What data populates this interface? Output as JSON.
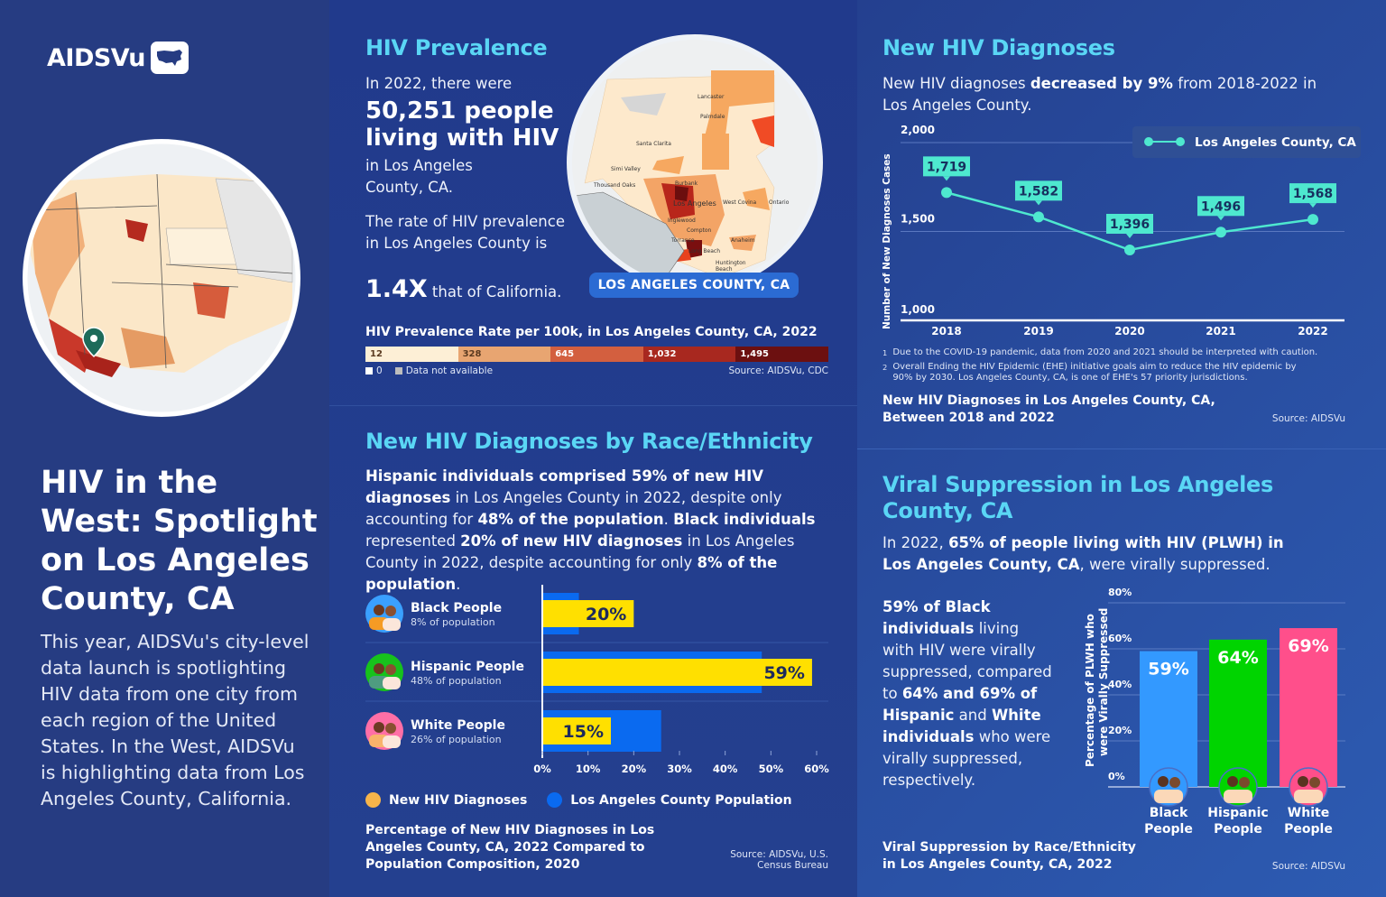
{
  "brand": {
    "logo_text": "AIDSVu"
  },
  "left": {
    "title": "HIV in the West: Spotlight on Los Angeles County, CA",
    "body": "This year, AIDSVu's city-level data launch is spotlighting HIV data from one city from each region of the United States. In the West, AIDSVu is highlighting data from Los Angeles County, California."
  },
  "prevalence": {
    "title": "HIV Prevalence",
    "intro": "In 2022, there were",
    "headline": "50,251 people living with HIV",
    "location": "in Los Angeles County, CA.",
    "rate_text": "The rate of HIV prevalence in Los Angeles County is",
    "rate_value": "1.4X",
    "rate_suffix": " that of California.",
    "map_badge": "LOS ANGELES COUNTY, CA",
    "map_labels": [
      "Lancaster",
      "Palmdale",
      "Santa Clarita",
      "Simi Valley",
      "Thousand Oaks",
      "Burbank",
      "Los Angeles",
      "West Covina",
      "Ontario",
      "Inglewood",
      "Compton",
      "Torrance",
      "Anaheim",
      "Long Beach",
      "Huntington Beach"
    ],
    "legend_title": "HIV Prevalence Rate per 100k, in Los Angeles County, CA, 2022",
    "legend_bins": [
      {
        "label": "12",
        "color": "#fdefd6"
      },
      {
        "label": "328",
        "color": "#e8a571"
      },
      {
        "label": "645",
        "color": "#d35f3f"
      },
      {
        "label": "1,032",
        "color": "#a8281f"
      },
      {
        "label": "1,495",
        "color": "#6c1010"
      }
    ],
    "legend_zero": "0",
    "legend_na": "Data not available",
    "source": "Source: AIDSVu, CDC"
  },
  "race": {
    "title": "New HIV Diagnoses by Race/Ethnicity",
    "body": [
      {
        "t": "Hispanic individuals comprised 59% of new HIV diagnoses",
        "b": true
      },
      {
        "t": " in Los Angeles County in 2022, despite only accounting for ",
        "b": false
      },
      {
        "t": "48% of the population",
        "b": true
      },
      {
        "t": ". ",
        "b": false
      },
      {
        "t": "Black individuals",
        "b": true
      },
      {
        "t": " represented ",
        "b": false
      },
      {
        "t": "20% of new HIV diagnoses",
        "b": true
      },
      {
        "t": " in Los Angeles County in 2022, despite accounting for only ",
        "b": false
      },
      {
        "t": "8% of the population",
        "b": true
      },
      {
        "t": ".",
        "b": false
      }
    ],
    "footer_title": "Percentage of New HIV Diagnoses in Los Angeles County, CA, 2022 Compared to Population Composition, 2020",
    "source": "Source: AIDSVu, U.S. Census Bureau"
  },
  "diagnoses": {
    "title": "New HIV Diagnoses",
    "body": [
      {
        "t": "New HIV diagnoses ",
        "b": false
      },
      {
        "t": "decreased by 9%",
        "b": true
      },
      {
        "t": " from 2018-2022 in Los Angeles County.",
        "b": false
      }
    ],
    "footnote_1_mark": "1",
    "footnote_1": "Due to the COVID-19 pandemic, data from 2020 and 2021 should be interpreted with caution.",
    "footnote_2_mark": "2",
    "footnote_2": "Overall Ending the HIV Epidemic (EHE) initiative goals aim to reduce the HIV epidemic by 90% by 2030. Los Angeles County, CA, is one of EHE's 57 priority jurisdictions.",
    "footer_title": "New HIV Diagnoses in Los Angeles County, CA, Between 2018 and 2022",
    "source": "Source: AIDSVu"
  },
  "viral": {
    "title": "Viral Suppression in Los Angeles County, CA",
    "body": [
      {
        "t": "In 2022, ",
        "b": false
      },
      {
        "t": "65% of people living with HIV (PLWH) in Los Angeles County, CA",
        "b": true
      },
      {
        "t": ", were virally suppressed.",
        "b": false
      }
    ],
    "side": [
      {
        "t": "59% of Black individuals",
        "b": true
      },
      {
        "t": " living with HIV were virally suppressed, compared to ",
        "b": false
      },
      {
        "t": "64% and 69% of Hispanic",
        "b": true
      },
      {
        "t": " and ",
        "b": false
      },
      {
        "t": "White individuals",
        "b": true
      },
      {
        "t": " who were virally suppressed, respectively.",
        "b": false
      }
    ],
    "footer_title": "Viral Suppression by Race/Ethnicity in Los Angeles County, CA, 2022",
    "source": "Source: AIDSVu"
  },
  "chart_data": [
    {
      "type": "bar",
      "orientation": "horizontal",
      "categories": [
        "Black People",
        "Hispanic People",
        "White People"
      ],
      "category_sublabels": [
        "8% of population",
        "48% of population",
        "26% of population"
      ],
      "series": [
        {
          "name": "New HIV Diagnoses",
          "values": [
            20,
            59,
            15
          ],
          "labels": [
            "20%",
            "59%",
            "15%"
          ],
          "color": "#ffe000"
        },
        {
          "name": "Los Angeles County Population",
          "values": [
            8,
            48,
            26
          ],
          "color": "#0a6af0"
        }
      ],
      "xlim": [
        0,
        60
      ],
      "x_ticks": [
        "0%",
        "10%",
        "20%",
        "30%",
        "40%",
        "50%",
        "60%"
      ],
      "legend_position": "bottom",
      "legend_marker_colors": [
        "#f7b44a",
        "#0a6af0"
      ]
    },
    {
      "type": "line",
      "x": [
        "2018",
        "2019",
        "2020",
        "2021",
        "2022"
      ],
      "series": [
        {
          "name": "Los Angeles County, CA",
          "values": [
            1719,
            1582,
            1396,
            1496,
            1568
          ],
          "labels": [
            "1,719",
            "1,582",
            "1,396",
            "1,496",
            "1,568"
          ],
          "color": "#4ee8cf"
        }
      ],
      "ylabel": "Number of New Diagnoses Cases",
      "ylim": [
        1000,
        2000
      ],
      "y_ticks": [
        "1,000",
        "1,500",
        "2,000"
      ],
      "grid": true,
      "legend_position": "top-right"
    },
    {
      "type": "bar",
      "categories": [
        "Black People",
        "Hispanic People",
        "White People"
      ],
      "values": [
        59,
        64,
        69
      ],
      "labels": [
        "59%",
        "64%",
        "69%"
      ],
      "colors": [
        "#3399ff",
        "#00d400",
        "#ff4f8b"
      ],
      "ylabel": "Percentage of PLWH who were Virally Suppressed",
      "ylim": [
        0,
        80
      ],
      "y_ticks": [
        "0%",
        "20%",
        "40%",
        "60%",
        "80%"
      ],
      "grid": true
    }
  ]
}
